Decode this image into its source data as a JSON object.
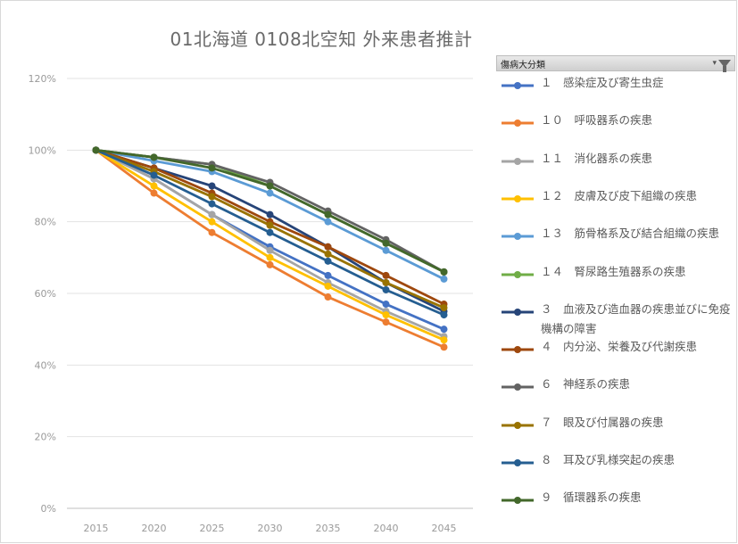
{
  "chart_data": {
    "type": "line",
    "title": "01北海道 0108北空知 外来患者推計",
    "x": [
      "2015",
      "2020",
      "2025",
      "2030",
      "2035",
      "2040",
      "2045"
    ],
    "ylim": [
      0,
      120
    ],
    "yticks": [
      0,
      20,
      40,
      60,
      80,
      100,
      120
    ],
    "ytick_labels": [
      "0%",
      "20%",
      "40%",
      "60%",
      "80%",
      "100%",
      "120%"
    ],
    "grid": true,
    "legend_position": "right",
    "legend_title": "傷病大分類",
    "series": [
      {
        "name": "１　感染症及び寄生虫症",
        "color": "#4472c4",
        "values": [
          100,
          92,
          82,
          73,
          65,
          57,
          50
        ]
      },
      {
        "name": "１０　呼吸器系の疾患",
        "color": "#ed7d31",
        "values": [
          100,
          88,
          77,
          68,
          59,
          52,
          45
        ]
      },
      {
        "name": "１１　消化器系の疾患",
        "color": "#a5a5a5",
        "values": [
          100,
          92,
          82,
          72,
          63,
          55,
          48
        ]
      },
      {
        "name": "１２　皮膚及び皮下組織の疾患",
        "color": "#ffc000",
        "values": [
          100,
          90,
          80,
          70,
          62,
          54,
          47
        ]
      },
      {
        "name": "１３　筋骨格系及び結合組織の疾患",
        "color": "#5b9bd5",
        "values": [
          100,
          97,
          94,
          88,
          80,
          72,
          64
        ]
      },
      {
        "name": "１４　腎尿路生殖器系の疾患",
        "color": "#70ad47",
        "values": [
          100,
          98,
          96,
          90,
          82,
          74,
          66
        ]
      },
      {
        "name": "３　血液及び造血器の疾患並びに免疫機構の障害",
        "color": "#264478",
        "values": [
          100,
          95,
          90,
          82,
          73,
          63,
          55
        ]
      },
      {
        "name": "４　内分泌、栄養及び代謝疾患",
        "color": "#9e480e",
        "values": [
          100,
          95,
          88,
          80,
          73,
          65,
          57
        ]
      },
      {
        "name": "６　神経系の疾患",
        "color": "#636363",
        "values": [
          100,
          98,
          96,
          91,
          83,
          75,
          66
        ]
      },
      {
        "name": "７　眼及び付属器の疾患",
        "color": "#997300",
        "values": [
          100,
          94,
          87,
          79,
          71,
          63,
          56
        ]
      },
      {
        "name": "８　耳及び乳様突起の疾患",
        "color": "#255e91",
        "values": [
          100,
          93,
          85,
          77,
          69,
          61,
          54
        ]
      },
      {
        "name": "９　循環器系の疾患",
        "color": "#43682b",
        "values": [
          100,
          98,
          95,
          90,
          82,
          74,
          66
        ]
      }
    ]
  }
}
